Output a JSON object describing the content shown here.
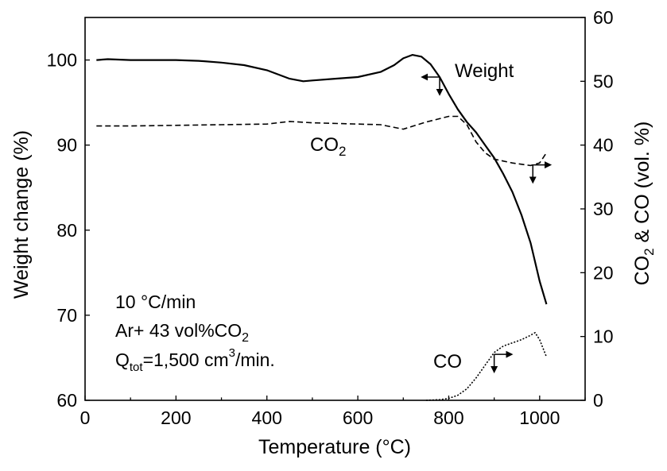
{
  "chart_data": {
    "type": "line",
    "xlabel": "Temperature (°C)",
    "ylabel_left": "Weight change (%)",
    "ylabel_right": {
      "pre": "CO",
      "sub": "2",
      "post": " & CO (vol. %)"
    },
    "x_axis": {
      "range": [
        0,
        1100
      ],
      "ticks": [
        0,
        200,
        400,
        600,
        800,
        1000
      ]
    },
    "y_left_axis": {
      "range": [
        60,
        105
      ],
      "ticks": [
        60,
        70,
        80,
        90,
        100
      ]
    },
    "y_right_axis": {
      "range": [
        0,
        60
      ],
      "ticks": [
        0,
        10,
        20,
        30,
        40,
        50,
        60
      ]
    },
    "grid": false,
    "annotations": {
      "rate": "10 °C/min",
      "gas": {
        "pre": "Ar+ 43 vol%CO",
        "sub": "2"
      },
      "flow": {
        "q": "Q",
        "q_sub": "tot",
        "mid": "=1,500 cm",
        "sup": "3",
        "post": "/min."
      }
    },
    "series": [
      {
        "name": "Weight",
        "label": "Weight",
        "axis": "left",
        "style": "solid",
        "x": [
          25,
          50,
          100,
          150,
          200,
          250,
          300,
          350,
          400,
          450,
          480,
          500,
          550,
          600,
          650,
          680,
          700,
          720,
          740,
          760,
          780,
          800,
          820,
          840,
          860,
          880,
          900,
          920,
          940,
          960,
          980,
          1000,
          1015
        ],
        "y": [
          100.0,
          100.1,
          100.0,
          100.0,
          100.0,
          99.9,
          99.7,
          99.4,
          98.8,
          97.8,
          97.5,
          97.6,
          97.8,
          98.0,
          98.6,
          99.4,
          100.2,
          100.6,
          100.4,
          99.5,
          98.0,
          96.0,
          94.2,
          92.7,
          91.5,
          90.0,
          88.5,
          86.6,
          84.5,
          81.8,
          78.5,
          74.0,
          71.3
        ]
      },
      {
        "name": "CO2",
        "label": {
          "pre": "CO",
          "sub": "2"
        },
        "axis": "right",
        "style": "dashed",
        "x": [
          25,
          100,
          200,
          300,
          400,
          450,
          500,
          600,
          650,
          700,
          750,
          800,
          820,
          840,
          860,
          880,
          900,
          940,
          980,
          1000,
          1015
        ],
        "y": [
          43.0,
          43.0,
          43.1,
          43.2,
          43.3,
          43.7,
          43.5,
          43.3,
          43.2,
          42.5,
          43.6,
          44.5,
          44.5,
          43.2,
          40.5,
          38.8,
          37.8,
          37.2,
          36.8,
          37.2,
          38.8
        ]
      },
      {
        "name": "CO",
        "label": "CO",
        "axis": "right",
        "style": "dotted",
        "x": [
          750,
          780,
          800,
          820,
          840,
          860,
          880,
          900,
          920,
          940,
          960,
          980,
          990,
          1000,
          1015
        ],
        "y": [
          0.0,
          0.1,
          0.3,
          0.8,
          1.8,
          3.5,
          5.5,
          7.5,
          8.5,
          9.0,
          9.5,
          10.2,
          10.6,
          9.5,
          6.8
        ]
      }
    ]
  }
}
